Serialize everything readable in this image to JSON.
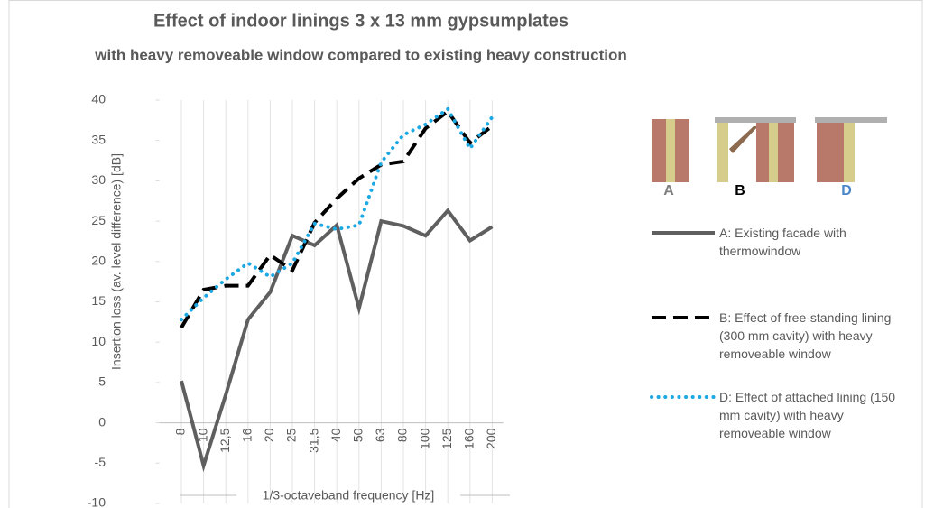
{
  "chart_data": {
    "type": "line",
    "title": "Effect of indoor linings 3 x 13 mm gypsumplates",
    "subtitle": "with heavy removeable window compared to existing heavy construction",
    "y_label": "Insertion loss (av. level difference) [dB]",
    "x_label": "1/3-octaveband frequency [Hz]",
    "categories": [
      "8",
      "10",
      "12,5",
      "16",
      "20",
      "25",
      "31,5",
      "40",
      "50",
      "63",
      "80",
      "100",
      "125",
      "160",
      "200"
    ],
    "series": [
      {
        "name": "A: Existing facade with thermowindow",
        "color": "#5f5f5f",
        "style": "solid",
        "values": [
          5.2,
          -5.3,
          3.5,
          12.8,
          16.2,
          23.2,
          22.0,
          24.5,
          14.2,
          25.0,
          24.4,
          23.2,
          26.3,
          22.6,
          24.3
        ]
      },
      {
        "name": "B: Effect of free-standing lining (300 mm cavity) with heavy removeable window",
        "color": "#000000",
        "style": "dashed",
        "values": [
          11.8,
          16.5,
          17.0,
          17.0,
          20.8,
          18.9,
          24.8,
          27.8,
          30.3,
          32.0,
          32.4,
          36.5,
          38.6,
          34.7,
          36.8
        ]
      },
      {
        "name": "D: Effect of attached lining (150 mm cavity) with heavy removeable window",
        "color": "#1ca8e3",
        "style": "dotted",
        "values": [
          12.8,
          15.5,
          17.8,
          19.8,
          18.1,
          19.8,
          24.7,
          24.0,
          24.5,
          32.3,
          35.7,
          37.0,
          38.9,
          34.0,
          37.9
        ]
      }
    ],
    "ylim": [
      -10,
      40
    ],
    "yticks": [
      -10,
      -5,
      0,
      5,
      10,
      15,
      20,
      25,
      30,
      35,
      40
    ],
    "grid": true,
    "illustration_labels": [
      "A",
      "B",
      "D"
    ]
  }
}
